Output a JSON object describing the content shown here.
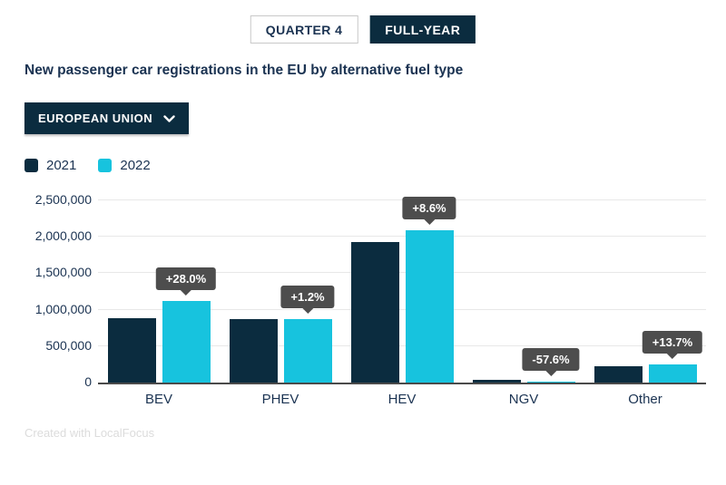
{
  "tabs": {
    "quarter_label": "QUARTER 4",
    "fullyear_label": "FULL-YEAR",
    "active": "FULL-YEAR"
  },
  "title": "New passenger car registrations in the EU by alternative fuel type",
  "region_selector": {
    "label": "EUROPEAN UNION",
    "icon": "chevron-down-icon"
  },
  "legend": {
    "items": [
      {
        "label": "2021",
        "color": "#0b2c3f"
      },
      {
        "label": "2022",
        "color": "#17c3de"
      }
    ]
  },
  "footer": "Created with LocalFocus",
  "colors": {
    "navy": "#0b2c3f",
    "cyan": "#17c3de",
    "text": "#1b3352",
    "tooltip_bg": "#4d4d4d",
    "gridline": "#e8e8e8",
    "axis_line": "#4a4a4a",
    "footer_text": "#dcdcdc"
  },
  "chart_data": {
    "type": "bar",
    "title": "New passenger car registrations in the EU by alternative fuel type",
    "categories": [
      "BEV",
      "PHEV",
      "HEV",
      "NGV",
      "Other"
    ],
    "series": [
      {
        "name": "2021",
        "color": "#0b2c3f",
        "values": [
          878000,
          866000,
          1924000,
          17000,
          221000
        ]
      },
      {
        "name": "2022",
        "color": "#17c3de",
        "values": [
          1124000,
          876000,
          2090000,
          7200,
          251000
        ]
      }
    ],
    "change_labels": [
      "+28.0%",
      "+1.2%",
      "+8.6%",
      "-57.6%",
      "+13.7%"
    ],
    "y_ticks": [
      {
        "value": 0,
        "label": "0"
      },
      {
        "value": 500000,
        "label": "500,000"
      },
      {
        "value": 1000000,
        "label": "1,000,000"
      },
      {
        "value": 1500000,
        "label": "1,500,000"
      },
      {
        "value": 2000000,
        "label": "2,000,000"
      },
      {
        "value": 2500000,
        "label": "2,500,000"
      }
    ],
    "ylim": [
      0,
      2500000
    ],
    "xlabel": "",
    "ylabel": "",
    "grid": true,
    "legend_position": "top-left"
  }
}
